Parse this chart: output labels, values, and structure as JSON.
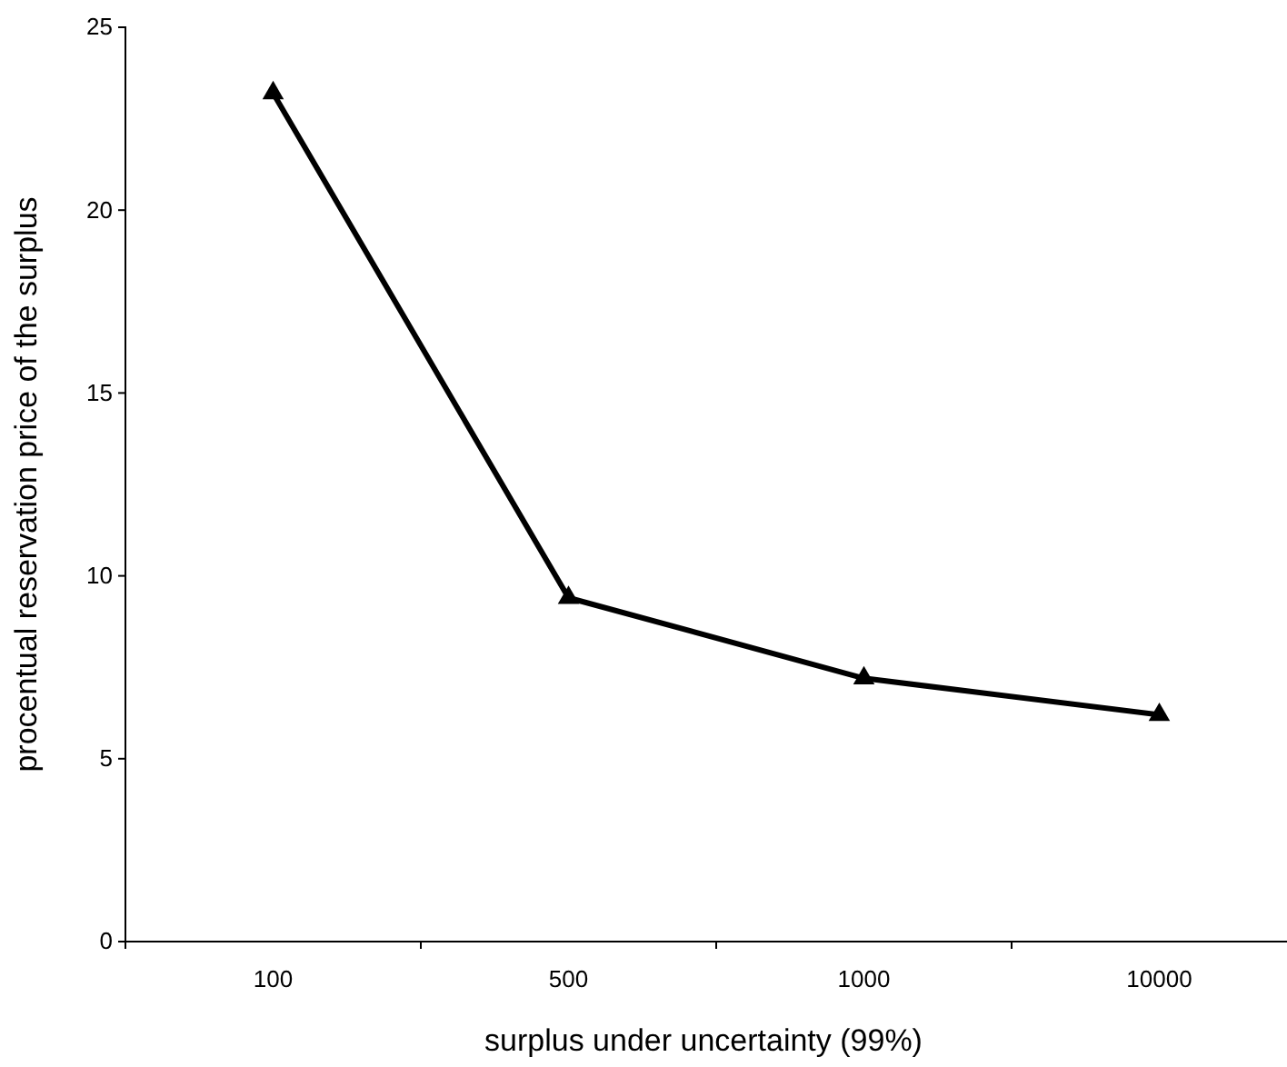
{
  "chart_data": {
    "type": "line",
    "xlabel": "surplus under uncertainty (99%)",
    "ylabel": "procentual reservation price of the surplus",
    "categories": [
      "100",
      "500",
      "1000",
      "10000"
    ],
    "series": [
      {
        "color": "#000000",
        "values": [
          23.2,
          9.4,
          7.2,
          6.2
        ]
      }
    ],
    "ylim": [
      0,
      25
    ],
    "yticks": [
      0,
      5,
      10,
      15,
      20,
      25
    ],
    "grid": false,
    "marker": "triangle",
    "line_style": "solid"
  }
}
